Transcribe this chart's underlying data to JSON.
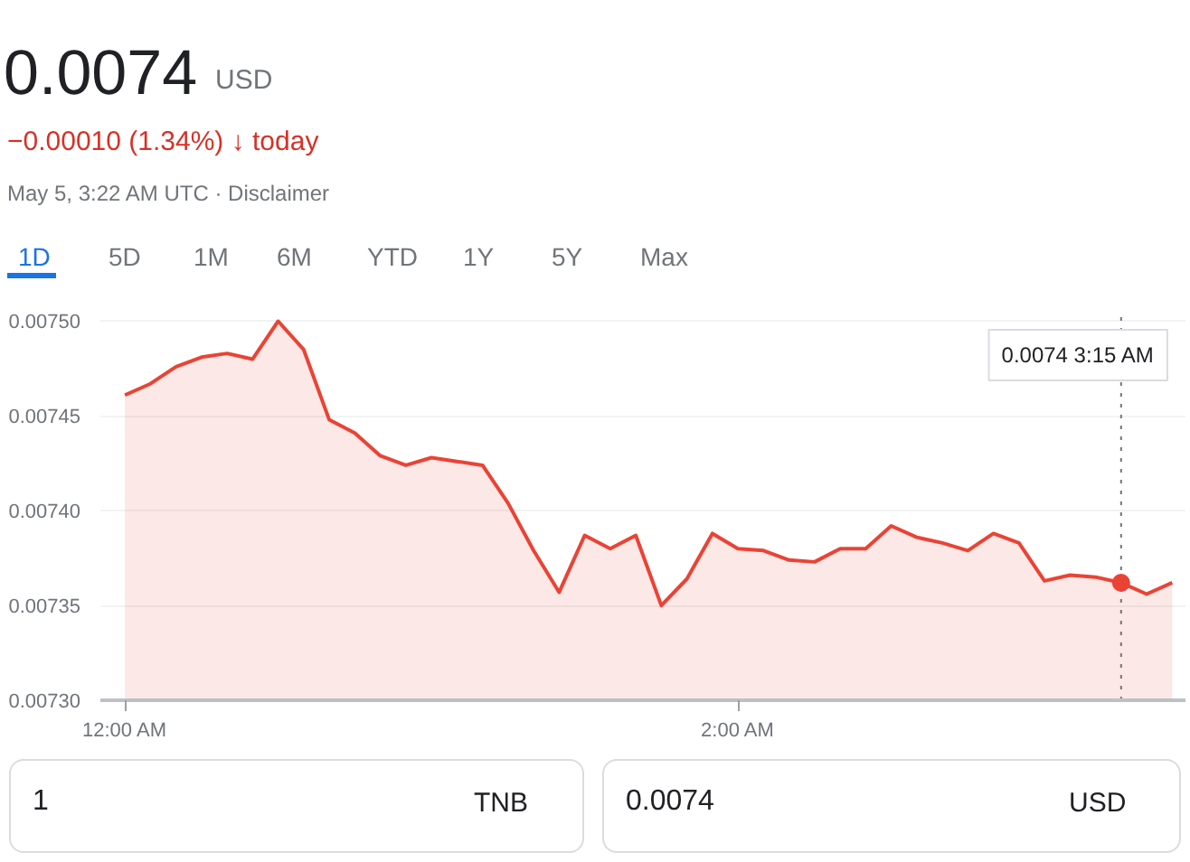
{
  "chart_data": {
    "type": "area",
    "title": "0.0074",
    "subtitle": "−0.00010 (1.34%) ↓ today",
    "annotations": [
      "0.0074 3:15 AM",
      "USD",
      "May 5, 3:22 AM UTC · Disclaimer",
      "1D",
      "5D",
      "1M",
      "6M",
      "YTD",
      "1Y",
      "5Y",
      "Max",
      "1",
      "TNB",
      "0.0074",
      "USD"
    ],
    "x": [
      0,
      0.0833,
      0.1667,
      0.25,
      0.3333,
      0.4167,
      0.5,
      0.5833,
      0.6667,
      0.75,
      0.8333,
      0.9167,
      1,
      1.0833,
      1.1667,
      1.25,
      1.3333,
      1.4167,
      1.5,
      1.5833,
      1.6667,
      1.75,
      1.8333,
      1.9167,
      2,
      2.0833,
      2.1667,
      2.25,
      2.3333,
      2.4167,
      2.5,
      2.5833,
      2.6667,
      2.75,
      2.8333,
      2.9167,
      3,
      3.0833,
      3.1667,
      3.25,
      3.3333,
      3.4167
    ],
    "series": [
      {
        "color": "#ea4335",
        "values": [
          0.007461,
          0.007467,
          0.007476,
          0.007481,
          0.007483,
          0.00748,
          0.0075,
          0.007485,
          0.007448,
          0.007441,
          0.007429,
          0.007424,
          0.007428,
          0.007426,
          0.007424,
          0.007404,
          0.007379,
          0.007357,
          0.007387,
          0.00738,
          0.007387,
          0.00735,
          0.007364,
          0.007388,
          0.00738,
          0.007379,
          0.007374,
          0.007373,
          0.00738,
          0.00738,
          0.007392,
          0.007386,
          0.007383,
          0.007379,
          0.007388,
          0.007383,
          0.007363,
          0.007366,
          0.007365,
          0.007362,
          0.007356,
          0.007362
        ]
      }
    ],
    "xlim": [
      -0.08,
      3.46
    ],
    "ylim": [
      0.0073,
      0.007505
    ],
    "xticks": [
      {
        "value": 0,
        "label": "12:00 AM"
      },
      {
        "value": 2,
        "label": "2:00 AM"
      }
    ],
    "yticks": [
      {
        "value": 0.0073,
        "label": "0.00730"
      },
      {
        "value": 0.00735,
        "label": "0.00735"
      },
      {
        "value": 0.0074,
        "label": "0.00740"
      },
      {
        "value": 0.00745,
        "label": "0.00745"
      },
      {
        "value": 0.0075,
        "label": "0.00750"
      }
    ],
    "ref_lines": [
      {
        "axis": "x",
        "value": 3.25,
        "label": null,
        "line_style": "dotted",
        "color": "#757575"
      }
    ],
    "grid": "y",
    "line_style": "solid",
    "marker": "none"
  }
}
